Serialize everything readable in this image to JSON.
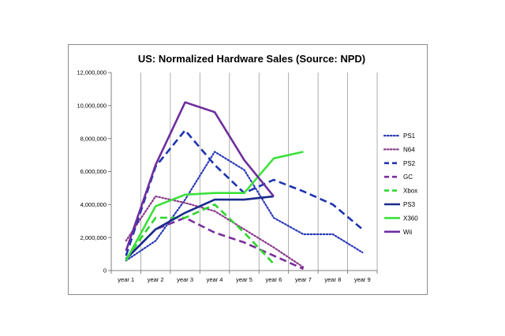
{
  "chart_data": {
    "type": "line",
    "title": "US: Normalized Hardware Sales (Source: NPD)",
    "xlabel": "",
    "ylabel": "",
    "categories": [
      "year 1",
      "year 2",
      "year 3",
      "year 4",
      "year 5",
      "year 6",
      "year 7",
      "year 8",
      "year 9"
    ],
    "ylim": [
      0,
      12000000
    ],
    "yticks": [
      "0",
      "2,000,000",
      "4,000,000",
      "6,000,000",
      "8,000,000",
      "10,000,000",
      "12,000,000"
    ],
    "grid": "vertical",
    "legend": "right",
    "series": [
      {
        "name": "PS1",
        "color": "#2a3ab8",
        "dash": "dotted",
        "values": [
          600000,
          1800000,
          4300000,
          7200000,
          6100000,
          3200000,
          2200000,
          2200000,
          1100000
        ]
      },
      {
        "name": "N64",
        "color": "#8a3a8a",
        "dash": "dotted",
        "values": [
          1800000,
          4500000,
          4100000,
          3600000,
          2500000,
          1400000,
          200000,
          null,
          null
        ]
      },
      {
        "name": "PS2",
        "color": "#1c34b0",
        "dash": "dashed",
        "values": [
          900000,
          6300000,
          8500000,
          6400000,
          4700000,
          5500000,
          4800000,
          4000000,
          2500000
        ]
      },
      {
        "name": "GC",
        "color": "#7a2e9a",
        "dash": "dashed",
        "values": [
          700000,
          2500000,
          3200000,
          2300000,
          1700000,
          900000,
          100000,
          null,
          null
        ]
      },
      {
        "name": "Xbox",
        "color": "#2ed62e",
        "dash": "dashed",
        "values": [
          700000,
          3200000,
          3200000,
          4000000,
          2300000,
          400000,
          null,
          null,
          null
        ]
      },
      {
        "name": "PS3",
        "color": "#1a2a8a",
        "dash": "solid",
        "values": [
          700000,
          2500000,
          3500000,
          4300000,
          4300000,
          4500000,
          null,
          null,
          null
        ]
      },
      {
        "name": "X360",
        "color": "#3ce03c",
        "dash": "solid",
        "values": [
          600000,
          3900000,
          4600000,
          4700000,
          4700000,
          6800000,
          7200000,
          null,
          null
        ]
      },
      {
        "name": "Wii",
        "color": "#6e2e9e",
        "dash": "solid",
        "values": [
          1200000,
          6400000,
          10200000,
          9600000,
          6700000,
          4500000,
          null,
          null,
          null
        ]
      }
    ]
  }
}
